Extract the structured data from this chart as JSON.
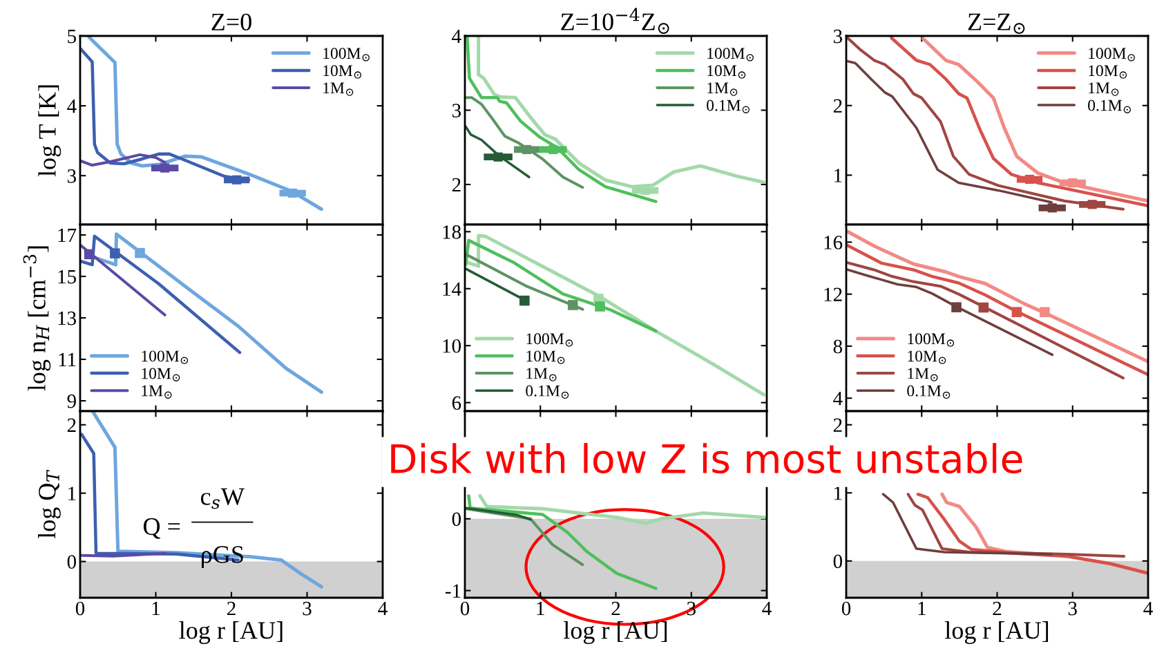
{
  "chart_data": [
    {
      "type": "line",
      "title": "Z=0",
      "ylabel": "log T [K]",
      "xlim": [
        0,
        4
      ],
      "xticks": [
        0,
        1,
        2,
        3,
        4
      ],
      "ylim": [
        2.3,
        5
      ],
      "yticks": [
        3,
        4,
        5
      ],
      "tick_labels": "y",
      "legend": "top right",
      "series": [
        {
          "name": "100M$_{⊙}$",
          "color": "#6ea6de",
          "x": [
            0.12,
            0.46,
            0.49,
            0.54,
            0.68,
            0.82,
            1.04,
            1.39,
            1.6,
            2.26,
            2.79,
            3.19
          ],
          "values": [
            4.98,
            4.62,
            3.45,
            3.31,
            3.18,
            3.14,
            3.16,
            3.28,
            3.27,
            3.01,
            2.78,
            2.52
          ]
        },
        {
          "name": "10M$_{⊙}$",
          "color": "#3d5fb0",
          "x": [
            0.01,
            0.16,
            0.19,
            0.23,
            0.4,
            0.58,
            0.82,
            1.04,
            1.18,
            1.39,
            1.91,
            2.23
          ],
          "values": [
            4.81,
            4.63,
            3.45,
            3.33,
            3.18,
            3.17,
            3.24,
            3.31,
            3.31,
            3.22,
            2.99,
            2.94
          ]
        },
        {
          "name": "1M$_{⊙}$",
          "color": "#5b4aa6",
          "x": [
            0.01,
            0.16,
            0.4,
            0.79,
            1.0,
            1.12
          ],
          "values": [
            3.21,
            3.15,
            3.2,
            3.3,
            3.26,
            3.19
          ]
        },
        {
          "type": "scatter",
          "marker": "square",
          "color": "#5b4aa6",
          "x": [
            1.12
          ],
          "values": [
            3.11
          ],
          "xerrors": [
            0.18
          ]
        },
        {
          "type": "scatter",
          "marker": "square",
          "color": "#3d5fb0",
          "x": [
            2.07
          ],
          "values": [
            2.94
          ],
          "xerrors": [
            0.17
          ]
        },
        {
          "type": "scatter",
          "marker": "square",
          "color": "#6ea6de",
          "x": [
            2.81
          ],
          "values": [
            2.75
          ],
          "xerrors": [
            0.175
          ]
        }
      ]
    },
    {
      "type": "line",
      "title": "Z=10$^{−4}$Z$_{⊙}$",
      "xlim": [
        0,
        4
      ],
      "xticks": [
        0,
        1,
        2,
        3,
        4
      ],
      "ylim": [
        1.46,
        4
      ],
      "yticks": [
        2,
        3,
        4
      ],
      "tick_labels": "y",
      "legend": "top right",
      "series": [
        {
          "name": "100M$_{⊙}$",
          "color": "#a3d9aa",
          "x": [
            0.18,
            0.18,
            0.25,
            0.39,
            0.46,
            0.67,
            0.88,
            1.06,
            1.2,
            1.51,
            1.86,
            2.21,
            2.49,
            2.77,
            3.12,
            3.61,
            3.96
          ],
          "values": [
            4.0,
            3.48,
            3.43,
            3.21,
            3.18,
            3.17,
            2.89,
            2.67,
            2.61,
            2.29,
            2.06,
            1.97,
            1.99,
            2.17,
            2.25,
            2.11,
            2.03
          ]
        },
        {
          "name": "10M$_{⊙}$",
          "color": "#4fbf5c",
          "x": [
            0.03,
            0.06,
            0.22,
            0.43,
            0.46,
            0.55,
            0.74,
            0.99,
            1.23,
            1.51,
            1.86,
            2.53
          ],
          "values": [
            3.98,
            3.43,
            3.17,
            3.17,
            3.12,
            3.1,
            2.85,
            2.64,
            2.49,
            2.2,
            1.97,
            1.77
          ]
        },
        {
          "name": "1M$_{⊙}$",
          "color": "#5d9464",
          "x": [
            0.02,
            0.09,
            0.22,
            0.36,
            0.53,
            0.71,
            1.02,
            1.3,
            1.56
          ],
          "values": [
            3.17,
            3.17,
            3.08,
            2.89,
            2.65,
            2.56,
            2.35,
            2.1,
            1.96
          ]
        },
        {
          "name": "0.1M$_{⊙}$",
          "color": "#245c36",
          "x": [
            0.01,
            0.08,
            0.22,
            0.46,
            0.85
          ],
          "values": [
            2.78,
            2.67,
            2.6,
            2.38,
            2.1
          ]
        },
        {
          "type": "scatter",
          "marker": "square",
          "color": "#245c36",
          "x": [
            0.44
          ],
          "values": [
            2.37
          ],
          "xerrors": [
            0.19
          ]
        },
        {
          "type": "scatter",
          "marker": "square",
          "color": "#5d9464",
          "x": [
            0.82
          ],
          "values": [
            2.47
          ],
          "xerrors": [
            0.17
          ]
        },
        {
          "type": "scatter",
          "marker": "square",
          "color": "#4fbf5c",
          "x": [
            1.17
          ],
          "values": [
            2.47
          ],
          "xerrors": [
            0.18
          ]
        },
        {
          "type": "scatter",
          "marker": "square",
          "color": "#a3d9aa",
          "x": [
            2.39
          ],
          "values": [
            1.92
          ],
          "xerrors": [
            0.175
          ]
        }
      ]
    },
    {
      "type": "line",
      "title": "Z=Z$_{⊙}$",
      "xlim": [
        0,
        4
      ],
      "xticks": [
        0,
        1,
        2,
        3,
        4
      ],
      "ylim": [
        0.29,
        3
      ],
      "yticks": [
        1,
        2,
        3
      ],
      "tick_labels": "y",
      "legend": "top right",
      "series": [
        {
          "name": "100M$_{⊙}$",
          "color": "#f28a85",
          "x": [
            1.02,
            1.32,
            1.49,
            1.74,
            1.95,
            2.09,
            2.26,
            2.54,
            2.89,
            4.0
          ],
          "values": [
            2.96,
            2.65,
            2.59,
            2.34,
            2.11,
            1.69,
            1.27,
            1.03,
            0.89,
            0.63
          ]
        },
        {
          "name": "10M$_{⊙}$",
          "color": "#d6524c",
          "x": [
            0.6,
            0.93,
            1.11,
            1.32,
            1.49,
            1.6,
            1.77,
            1.95,
            2.19,
            2.54,
            4.0
          ],
          "values": [
            2.97,
            2.65,
            2.59,
            2.38,
            2.17,
            2.11,
            1.66,
            1.24,
            1.01,
            0.89,
            0.56
          ]
        },
        {
          "name": "1M$_{⊙}$",
          "color": "#a04540",
          "x": [
            0.02,
            0.19,
            0.37,
            0.51,
            0.75,
            0.89,
            1.0,
            1.25,
            1.42,
            1.63,
            2.02,
            2.89,
            3.67
          ],
          "values": [
            2.97,
            2.8,
            2.65,
            2.59,
            2.38,
            2.17,
            2.11,
            1.77,
            1.27,
            1.01,
            0.85,
            0.63,
            0.51
          ]
        },
        {
          "name": "0.1M$_{⊙}$",
          "color": "#6e3e3d",
          "x": [
            0.0,
            0.12,
            0.33,
            0.51,
            0.61,
            0.93,
            1.21,
            1.49,
            2.02,
            2.72
          ],
          "values": [
            2.64,
            2.61,
            2.38,
            2.19,
            2.13,
            1.68,
            1.08,
            0.89,
            0.78,
            0.61
          ]
        },
        {
          "type": "scatter",
          "marker": "square",
          "color": "#d6524c",
          "x": [
            2.43
          ],
          "values": [
            0.94
          ],
          "xerrors": [
            0.17
          ]
        },
        {
          "type": "scatter",
          "marker": "square",
          "color": "#f28a85",
          "x": [
            3.0
          ],
          "values": [
            0.89
          ],
          "xerrors": [
            0.175
          ]
        },
        {
          "type": "scatter",
          "marker": "square",
          "color": "#6e3e3d",
          "x": [
            2.73
          ],
          "values": [
            0.53
          ],
          "xerrors": [
            0.18
          ]
        },
        {
          "type": "scatter",
          "marker": "square",
          "color": "#a04540",
          "x": [
            3.26
          ],
          "values": [
            0.58
          ],
          "xerrors": [
            0.175
          ]
        }
      ]
    },
    {
      "type": "line",
      "ylabel": "log n$_{H}$ [cm$^{−3}$]",
      "xlim": [
        0,
        4
      ],
      "xticks": [
        0,
        1,
        2,
        3,
        4
      ],
      "ylim": [
        8.5,
        17.5
      ],
      "yticks": [
        9,
        11,
        13,
        15,
        17
      ],
      "tick_labels": "y",
      "legend": "bottom left",
      "series": [
        {
          "name": "100M$_{⊙}$",
          "color": "#6ea6de",
          "x": [
            0.2,
            0.47,
            0.48,
            1.39,
            2.09,
            2.72,
            3.19
          ],
          "values": [
            15.9,
            15.56,
            17.04,
            14.52,
            12.6,
            10.57,
            9.42
          ]
        },
        {
          "name": "10M$_{⊙}$",
          "color": "#3d5fb0",
          "x": [
            0.01,
            0.16,
            0.19,
            1.04,
            2.11
          ],
          "values": [
            15.73,
            15.56,
            16.94,
            14.64,
            11.33
          ]
        },
        {
          "name": "1M$_{⊙}$",
          "color": "#5b4aa6",
          "x": [
            0.01,
            1.12
          ],
          "values": [
            16.49,
            13.14
          ]
        },
        {
          "type": "scatter",
          "marker": "square",
          "color": "#5b4aa6",
          "x": [
            0.12
          ],
          "values": [
            16.07
          ]
        },
        {
          "type": "scatter",
          "marker": "square",
          "color": "#3d5fb0",
          "x": [
            0.46
          ],
          "values": [
            16.11
          ]
        },
        {
          "type": "scatter",
          "marker": "square",
          "color": "#6ea6de",
          "x": [
            0.79
          ],
          "values": [
            16.13
          ]
        }
      ]
    },
    {
      "type": "line",
      "xlim": [
        0,
        4
      ],
      "xticks": [
        0,
        1,
        2,
        3,
        4
      ],
      "ylim": [
        5.4,
        18.5
      ],
      "yticks": [
        6,
        10,
        14,
        18
      ],
      "tick_labels": "y",
      "legend": "bottom left",
      "series": [
        {
          "name": "100M$_{⊙}$",
          "color": "#a3d9aa",
          "x": [
            0.02,
            0.18,
            0.18,
            0.27,
            0.99,
            1.79,
            2.53,
            3.26,
            3.96
          ],
          "values": [
            15.86,
            15.58,
            17.72,
            17.68,
            15.67,
            13.44,
            11.02,
            8.79,
            6.56
          ]
        },
        {
          "name": "10M$_{⊙}$",
          "color": "#4fbf5c",
          "x": [
            0.01,
            0.05,
            0.64,
            1.3,
            1.93,
            2.53
          ],
          "values": [
            15.67,
            17.39,
            15.86,
            13.63,
            12.51,
            11.02
          ]
        },
        {
          "name": "1M$_{⊙}$",
          "color": "#5d9464",
          "x": [
            0.01,
            0.81,
            1.56
          ],
          "values": [
            16.42,
            14.19,
            12.55
          ]
        },
        {
          "name": "0.1M$_{⊙}$",
          "color": "#245c36",
          "x": [
            0.01,
            0.74
          ],
          "values": [
            15.4,
            13.35
          ]
        },
        {
          "type": "scatter",
          "marker": "square",
          "color": "#245c36",
          "x": [
            0.79
          ],
          "values": [
            13.16
          ]
        },
        {
          "type": "scatter",
          "marker": "square",
          "color": "#5d9464",
          "x": [
            1.43
          ],
          "values": [
            12.85
          ]
        },
        {
          "type": "scatter",
          "marker": "square",
          "color": "#a3d9aa",
          "x": [
            1.77
          ],
          "values": [
            13.29
          ]
        },
        {
          "type": "scatter",
          "marker": "square",
          "color": "#4fbf5c",
          "x": [
            1.79
          ],
          "values": [
            12.75
          ]
        }
      ]
    },
    {
      "type": "line",
      "xlim": [
        0,
        4
      ],
      "xticks": [
        0,
        1,
        2,
        3,
        4
      ],
      "ylim": [
        3.0,
        17.35
      ],
      "yticks": [
        4,
        8,
        12,
        16
      ],
      "tick_labels": "y",
      "legend": "bottom left",
      "series": [
        {
          "name": "100M$_{⊙}$",
          "color": "#f28a85",
          "x": [
            0.0,
            0.37,
            0.89,
            1.32,
            1.49,
            1.84,
            2.37,
            2.72,
            4.0
          ],
          "values": [
            16.87,
            15.7,
            14.32,
            13.71,
            13.36,
            12.82,
            11.23,
            10.32,
            6.81
          ]
        },
        {
          "name": "10M$_{⊙}$",
          "color": "#d6524c",
          "x": [
            0.0,
            0.47,
            0.89,
            1.14,
            1.49,
            1.84,
            2.26,
            4.0
          ],
          "values": [
            15.8,
            14.38,
            13.87,
            13.36,
            12.86,
            11.94,
            10.67,
            5.8
          ]
        },
        {
          "name": "1M$_{⊙}$",
          "color": "#a04540",
          "x": [
            0.0,
            0.37,
            0.61,
            0.89,
            1.25,
            1.49,
            1.82,
            3.67
          ],
          "values": [
            14.44,
            13.87,
            13.36,
            12.96,
            12.61,
            12.0,
            11.03,
            5.55
          ]
        },
        {
          "name": "0.1M$_{⊙}$",
          "color": "#6e3e3d",
          "x": [
            0.0,
            0.26,
            0.68,
            0.93,
            1.14,
            1.46,
            2.73
          ],
          "values": [
            13.91,
            13.46,
            12.75,
            12.55,
            12.04,
            11.03,
            7.34
          ]
        },
        {
          "type": "scatter",
          "marker": "square",
          "color": "#6e3e3d",
          "x": [
            1.46
          ],
          "values": [
            10.99
          ]
        },
        {
          "type": "scatter",
          "marker": "square",
          "color": "#a04540",
          "x": [
            1.82
          ],
          "values": [
            10.97
          ]
        },
        {
          "type": "scatter",
          "marker": "square",
          "color": "#d6524c",
          "x": [
            2.26
          ],
          "values": [
            10.62
          ]
        },
        {
          "type": "scatter",
          "marker": "square",
          "color": "#f28a85",
          "x": [
            2.63
          ],
          "values": [
            10.62
          ]
        }
      ]
    },
    {
      "type": "line",
      "ylabel": "log Q$_{T}$",
      "xlabel": "log r [AU]",
      "xlim": [
        0,
        4
      ],
      "xticks": [
        0,
        1,
        2,
        3,
        4
      ],
      "ylim": [
        -0.53,
        2.2
      ],
      "yticks": [
        0,
        1,
        2
      ],
      "bands": [
        {
          "axis": "y",
          "from": -0.53,
          "to": 0,
          "color": "#d0d0d0"
        }
      ],
      "annotations": [
        "Q =",
        "c$_{s}$W",
        "ρGS"
      ],
      "series": [
        {
          "color": "#6ea6de",
          "x": [
            0.17,
            0.46,
            0.5,
            1.27,
            2.26,
            2.66,
            2.92,
            3.19
          ],
          "values": [
            2.19,
            1.67,
            0.15,
            0.13,
            0.07,
            0.02,
            -0.18,
            -0.37
          ]
        },
        {
          "color": "#3d5fb0",
          "x": [
            0.02,
            0.18,
            0.21,
            1.27,
            2.09
          ],
          "values": [
            1.86,
            1.58,
            0.12,
            0.11,
            0.02
          ]
        },
        {
          "color": "#5b4aa6",
          "x": [
            0.02,
            0.44,
            1.13
          ],
          "values": [
            0.09,
            0.08,
            0.12
          ]
        }
      ]
    },
    {
      "type": "line",
      "xlabel": "log r [AU]",
      "xlim": [
        0,
        4
      ],
      "xticks": [
        0,
        1,
        2,
        3,
        4
      ],
      "ylim": [
        -1.1,
        1.5
      ],
      "yticks": [
        -1,
        0
      ],
      "bands": [
        {
          "axis": "y",
          "from": -1.1,
          "to": 0,
          "color": "#d0d0d0"
        }
      ],
      "annotations": [
        "Disk with low Z is most unstable"
      ],
      "series": [
        {
          "color": "#a3d9aa",
          "x": [
            0.2,
            0.29,
            1.03,
            2.01,
            2.4,
            2.6,
            3.16,
            3.97
          ],
          "values": [
            0.32,
            0.17,
            0.14,
            0.02,
            -0.06,
            0.0,
            0.08,
            0.02
          ]
        },
        {
          "color": "#4fbf5c",
          "x": [
            0.05,
            0.07,
            1.03,
            1.36,
            1.62,
            2.01,
            2.53
          ],
          "values": [
            0.32,
            0.15,
            0.06,
            -0.19,
            -0.46,
            -0.76,
            -0.97
          ]
        },
        {
          "color": "#5d9464",
          "x": [
            0.02,
            0.87,
            1.16,
            1.56
          ],
          "values": [
            0.14,
            0.0,
            -0.36,
            -0.64
          ]
        },
        {
          "color": "#245c36",
          "x": [
            0.02,
            0.7,
            0.87
          ],
          "values": [
            0.15,
            0.05,
            -0.01
          ]
        }
      ]
    },
    {
      "type": "line",
      "xlabel": "log r [AU]",
      "xlim": [
        0,
        4
      ],
      "xticks": [
        0,
        1,
        2,
        3,
        4
      ],
      "ylim": [
        -0.54,
        2.2
      ],
      "yticks": [
        0,
        1,
        2
      ],
      "bands": [
        {
          "axis": "y",
          "from": -0.54,
          "to": 0,
          "color": "#d0d0d0"
        }
      ],
      "series": [
        {
          "color": "#f28a85",
          "x": [
            1.27,
            1.33,
            1.5,
            1.72,
            1.87,
            2.11,
            2.92,
            3.5,
            4.0
          ],
          "values": [
            0.98,
            0.86,
            0.8,
            0.5,
            0.2,
            0.14,
            0.07,
            -0.04,
            -0.18
          ]
        },
        {
          "color": "#d6524c",
          "x": [
            0.95,
            1.08,
            1.3,
            1.5,
            1.66,
            2.27,
            2.92,
            3.5,
            4.0
          ],
          "values": [
            0.98,
            0.93,
            0.61,
            0.29,
            0.17,
            0.11,
            0.07,
            -0.04,
            -0.18
          ]
        },
        {
          "color": "#a04540",
          "x": [
            0.82,
            0.91,
            1.01,
            1.27,
            1.63,
            2.92,
            3.68
          ],
          "values": [
            0.98,
            0.82,
            0.75,
            0.18,
            0.13,
            0.1,
            0.07
          ]
        },
        {
          "color": "#6e3e3d",
          "x": [
            0.49,
            0.62,
            0.93,
            1.3,
            2.72
          ],
          "values": [
            0.98,
            0.86,
            0.18,
            0.13,
            0.1
          ]
        }
      ]
    }
  ]
}
